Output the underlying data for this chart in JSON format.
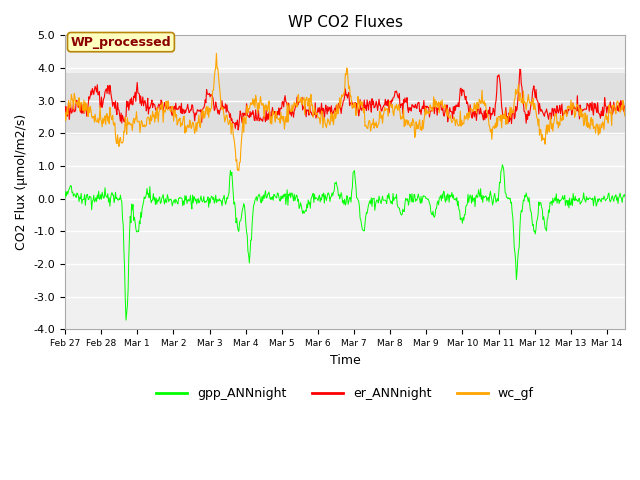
{
  "title": "WP CO2 Fluxes",
  "xlabel": "Time",
  "ylabel": "CO2 Flux (μmol/m2/s)",
  "ylim": [
    -4.0,
    5.0
  ],
  "yticks": [
    -4.0,
    -3.0,
    -2.0,
    -1.0,
    0.0,
    1.0,
    2.0,
    3.0,
    4.0,
    5.0
  ],
  "xlim_days": [
    0,
    15.5
  ],
  "xtick_labels": [
    "Feb 27",
    "Feb 28",
    "Mar 1",
    "Mar 2",
    "Mar 3",
    "Mar 4",
    "Mar 5",
    "Mar 6",
    "Mar 7",
    "Mar 8",
    "Mar 9",
    "Mar 10",
    "Mar 11",
    "Mar 12",
    "Mar 13",
    "Mar 14"
  ],
  "xtick_positions": [
    0,
    1,
    2,
    3,
    4,
    5,
    6,
    7,
    8,
    9,
    10,
    11,
    12,
    13,
    14,
    15
  ],
  "legend_labels": [
    "gpp_ANNnight",
    "er_ANNnight",
    "wc_gf"
  ],
  "legend_colors": [
    "#00FF00",
    "#FF0000",
    "#FFA500"
  ],
  "wp_processed_label": "WP_processed",
  "wp_box_facecolor": "#FFFFC0",
  "wp_box_edgecolor": "#B8860B",
  "wp_text_color": "#8B0000",
  "plot_bg_color": "#F0F0F0",
  "shaded_band_lo": 1.95,
  "shaded_band_hi": 3.85,
  "shaded_band_color": "#E0E0E0",
  "grid_color": "#FFFFFF",
  "n_points": 800
}
